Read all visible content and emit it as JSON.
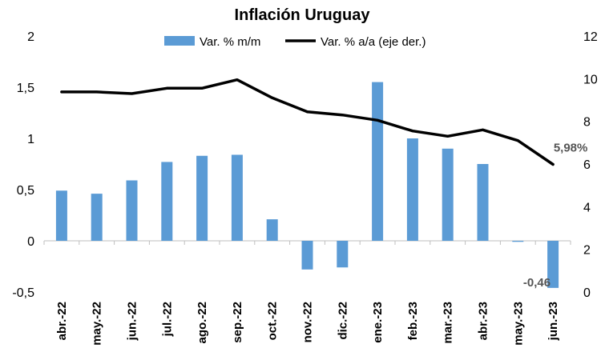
{
  "chart_data": {
    "type": "bar",
    "title": "Inflación Uruguay",
    "categories": [
      "abr.-22",
      "may.-22",
      "jun.-22",
      "jul.-22",
      "ago.-22",
      "sep.-22",
      "oct.-22",
      "nov.-22",
      "dic.-22",
      "ene.-23",
      "feb.-23",
      "mar.-23",
      "abr.-23",
      "may.-23",
      "jun.-23"
    ],
    "series": [
      {
        "name": "Var. % m/m",
        "type": "bar",
        "axis": "left",
        "color": "#5B9BD5",
        "values": [
          0.49,
          0.46,
          0.59,
          0.77,
          0.83,
          0.84,
          0.21,
          -0.28,
          -0.26,
          1.55,
          1.0,
          0.9,
          0.75,
          -0.01,
          -0.46
        ]
      },
      {
        "name": "Var. % a/a (eje der.)",
        "type": "line",
        "axis": "right",
        "color": "#000000",
        "values": [
          9.38,
          9.38,
          9.3,
          9.55,
          9.55,
          9.95,
          9.1,
          8.45,
          8.3,
          8.05,
          7.55,
          7.3,
          7.6,
          7.1,
          5.98
        ]
      }
    ],
    "y_left": {
      "ylim": [
        -0.5,
        2
      ],
      "ticks": [
        "-0,5",
        "0",
        "0,5",
        "1",
        "1,5",
        "2"
      ],
      "tick_values": [
        -0.5,
        0,
        0.5,
        1,
        1.5,
        2
      ]
    },
    "y_right": {
      "ylim": [
        0,
        12
      ],
      "ticks": [
        "0",
        "2",
        "4",
        "6",
        "8",
        "10",
        "12"
      ],
      "tick_values": [
        0,
        2,
        4,
        6,
        8,
        10,
        12
      ]
    },
    "data_labels": [
      {
        "series": 0,
        "index": 14,
        "text": "-0,46"
      },
      {
        "series": 1,
        "index": 14,
        "text": "5,98%"
      }
    ],
    "legend_position": "top",
    "grid": false
  }
}
